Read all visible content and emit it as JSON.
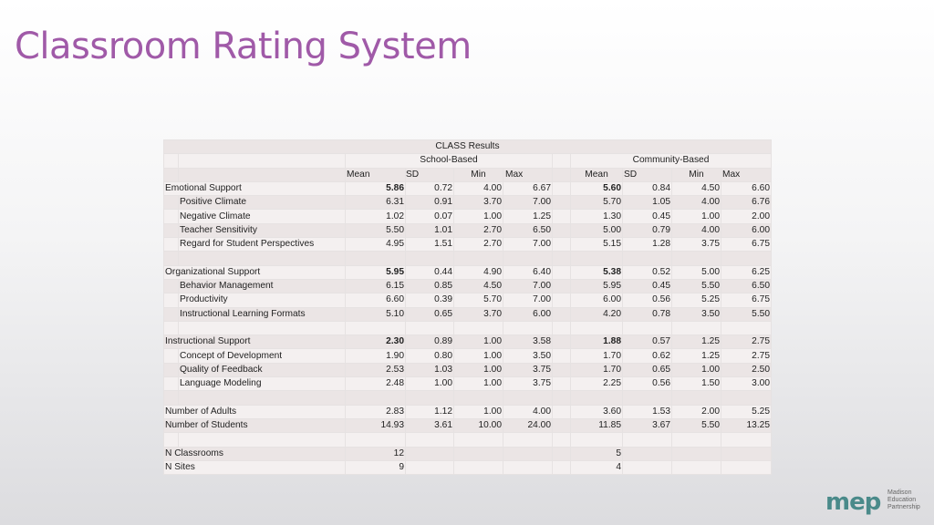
{
  "title": "Classroom Rating System",
  "table": {
    "header": "CLASS Results",
    "school_label": "School-Based",
    "community_label": "Community-Based",
    "col_mean": "Mean",
    "col_sd": "SD",
    "col_min": "Min",
    "col_max": "Max",
    "rows": [
      {
        "label": "Emotional Support",
        "sub": false,
        "bold": true,
        "s": [
          "5.86",
          "0.72",
          "4.00",
          "6.67"
        ],
        "c": [
          "5.60",
          "0.84",
          "4.50",
          "6.60"
        ]
      },
      {
        "label": "Positive Climate",
        "sub": true,
        "bold": false,
        "s": [
          "6.31",
          "0.91",
          "3.70",
          "7.00"
        ],
        "c": [
          "5.70",
          "1.05",
          "4.00",
          "6.76"
        ]
      },
      {
        "label": "Negative Climate",
        "sub": true,
        "bold": false,
        "s": [
          "1.02",
          "0.07",
          "1.00",
          "1.25"
        ],
        "c": [
          "1.30",
          "0.45",
          "1.00",
          "2.00"
        ]
      },
      {
        "label": "Teacher Sensitivity",
        "sub": true,
        "bold": false,
        "s": [
          "5.50",
          "1.01",
          "2.70",
          "6.50"
        ],
        "c": [
          "5.00",
          "0.79",
          "4.00",
          "6.00"
        ]
      },
      {
        "label": "Regard for Student Perspectives",
        "sub": true,
        "bold": false,
        "s": [
          "4.95",
          "1.51",
          "2.70",
          "7.00"
        ],
        "c": [
          "5.15",
          "1.28",
          "3.75",
          "6.75"
        ]
      },
      {
        "blank": true
      },
      {
        "label": "Organizational Support",
        "sub": false,
        "bold": true,
        "s": [
          "5.95",
          "0.44",
          "4.90",
          "6.40"
        ],
        "c": [
          "5.38",
          "0.52",
          "5.00",
          "6.25"
        ]
      },
      {
        "label": "Behavior Management",
        "sub": true,
        "bold": false,
        "s": [
          "6.15",
          "0.85",
          "4.50",
          "7.00"
        ],
        "c": [
          "5.95",
          "0.45",
          "5.50",
          "6.50"
        ]
      },
      {
        "label": "Productivity",
        "sub": true,
        "bold": false,
        "s": [
          "6.60",
          "0.39",
          "5.70",
          "7.00"
        ],
        "c": [
          "6.00",
          "0.56",
          "5.25",
          "6.75"
        ]
      },
      {
        "label": "Instructional Learning Formats",
        "sub": true,
        "bold": false,
        "s": [
          "5.10",
          "0.65",
          "3.70",
          "6.00"
        ],
        "c": [
          "4.20",
          "0.78",
          "3.50",
          "5.50"
        ]
      },
      {
        "blank": true
      },
      {
        "label": "Instructional Support",
        "sub": false,
        "bold": true,
        "s": [
          "2.30",
          "0.89",
          "1.00",
          "3.58"
        ],
        "c": [
          "1.88",
          "0.57",
          "1.25",
          "2.75"
        ]
      },
      {
        "label": "Concept of Development",
        "sub": true,
        "bold": false,
        "s": [
          "1.90",
          "0.80",
          "1.00",
          "3.50"
        ],
        "c": [
          "1.70",
          "0.62",
          "1.25",
          "2.75"
        ]
      },
      {
        "label": "Quality of Feedback",
        "sub": true,
        "bold": false,
        "s": [
          "2.53",
          "1.03",
          "1.00",
          "3.75"
        ],
        "c": [
          "1.70",
          "0.65",
          "1.00",
          "2.50"
        ]
      },
      {
        "label": "Language Modeling",
        "sub": true,
        "bold": false,
        "s": [
          "2.48",
          "1.00",
          "1.00",
          "3.75"
        ],
        "c": [
          "2.25",
          "0.56",
          "1.50",
          "3.00"
        ]
      },
      {
        "blank": true
      },
      {
        "label": "Number of Adults",
        "sub": false,
        "bold": false,
        "s": [
          "2.83",
          "1.12",
          "1.00",
          "4.00"
        ],
        "c": [
          "3.60",
          "1.53",
          "2.00",
          "5.25"
        ]
      },
      {
        "label": "Number of Students",
        "sub": false,
        "bold": false,
        "s": [
          "14.93",
          "3.61",
          "10.00",
          "24.00"
        ],
        "c": [
          "11.85",
          "3.67",
          "5.50",
          "13.25"
        ]
      },
      {
        "blank": true
      },
      {
        "label": "N Classrooms",
        "sub": false,
        "bold": false,
        "s": [
          "12",
          "",
          "",
          ""
        ],
        "c": [
          "5",
          "",
          "",
          ""
        ]
      },
      {
        "label": "N Sites",
        "sub": false,
        "bold": false,
        "s": [
          "9",
          "",
          "",
          ""
        ],
        "c": [
          "4",
          "",
          "",
          ""
        ]
      }
    ]
  },
  "logo": {
    "mark": "mep",
    "line1": "Madison",
    "line2": "Education",
    "line3": "Partnership"
  }
}
